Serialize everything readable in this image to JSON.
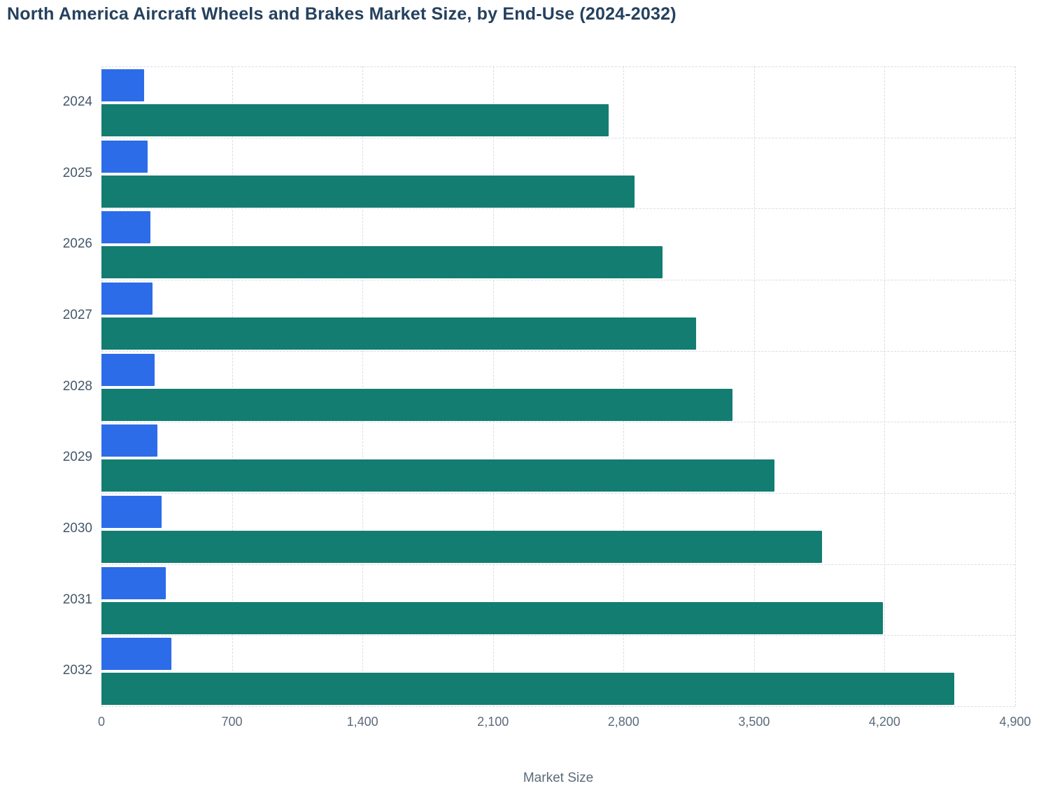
{
  "title": "North America Aircraft Wheels and Brakes Market Size, by End-Use (2024-2032)",
  "chart_data": {
    "type": "bar",
    "orientation": "horizontal",
    "title": "North America Aircraft Wheels and Brakes Market Size, by End-Use (2024-2032)",
    "categories": [
      "2024",
      "2025",
      "2026",
      "2027",
      "2028",
      "2029",
      "2030",
      "2031",
      "2032"
    ],
    "series": [
      {
        "name": "blue",
        "color": "#2d6ce9",
        "values": [
          230,
          248,
          261,
          273,
          287,
          302,
          322,
          346,
          375
        ]
      },
      {
        "name": "teal",
        "color": "#137d71",
        "values": [
          2720,
          2860,
          3010,
          3190,
          3385,
          3610,
          3865,
          4190,
          4575
        ]
      }
    ],
    "xlabel": "Market Size",
    "xlim": [
      0,
      4900
    ],
    "xticks": [
      0,
      700,
      1400,
      2100,
      2800,
      3500,
      4200,
      4900
    ],
    "xtick_labels": [
      "0",
      "700",
      "1,400",
      "2,100",
      "2,800",
      "3,500",
      "4,200",
      "4,900"
    ],
    "grid": "dashed",
    "legend": "none"
  },
  "colors": {
    "background": "#ffffff",
    "title_text": "#25415e",
    "axis_text": "#5b6b7c",
    "y_axis_text": "#45586b",
    "gridline": "#d9dde3",
    "bar_blue": "#2d6ce9",
    "bar_teal": "#137d71"
  }
}
